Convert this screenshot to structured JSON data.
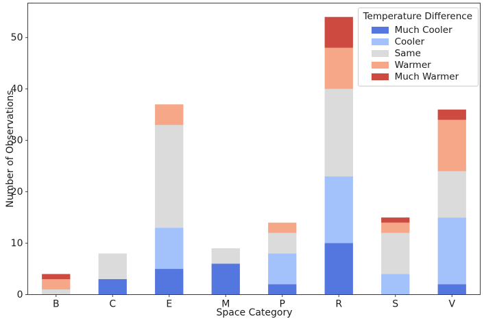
{
  "chart_data": {
    "type": "bar",
    "stacked": true,
    "title": "",
    "xlabel": "Space Category",
    "ylabel": "Number of Observations",
    "categories": [
      "B",
      "C",
      "E",
      "M",
      "P",
      "R",
      "S",
      "V"
    ],
    "series": [
      {
        "name": "Much Cooler",
        "color": "#5376df",
        "values": [
          0,
          3,
          5,
          6,
          2,
          10,
          0,
          2
        ]
      },
      {
        "name": "Cooler",
        "color": "#a3c2fb",
        "values": [
          0,
          0,
          8,
          0,
          6,
          13,
          4,
          13
        ]
      },
      {
        "name": "Same",
        "color": "#dbdbdb",
        "values": [
          1,
          5,
          20,
          3,
          4,
          17,
          8,
          9
        ]
      },
      {
        "name": "Warmer",
        "color": "#f5a787",
        "values": [
          2,
          0,
          4,
          0,
          2,
          8,
          2,
          10
        ]
      },
      {
        "name": "Much Warmer",
        "color": "#cc4a3f",
        "values": [
          1,
          0,
          0,
          0,
          0,
          6,
          1,
          2
        ]
      }
    ],
    "totals": {
      "B": 4,
      "C": 8,
      "E": 37,
      "M": 9,
      "P": 14,
      "R": 54,
      "S": 15,
      "V": 36
    },
    "legend": {
      "title": "Temperature Difference",
      "position": "upper right"
    },
    "yticks": [
      0,
      10,
      20,
      30,
      40,
      50
    ],
    "ylim": [
      0,
      56.7
    ],
    "grid": false,
    "axis_color": "#3c3c3c"
  }
}
